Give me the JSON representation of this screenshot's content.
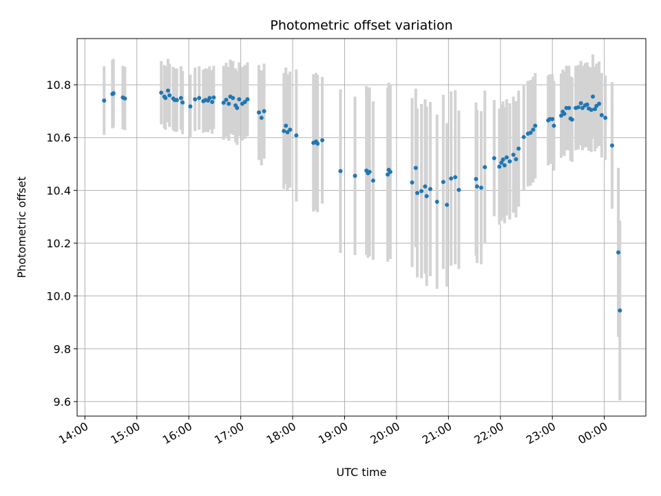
{
  "chart_data": {
    "type": "scatter",
    "title": "Photometric offset variation",
    "xlabel": "UTC time",
    "ylabel": "Photometric offset",
    "ylim": [
      9.545,
      10.975
    ],
    "xlim_hours": [
      13.85,
      24.8
    ],
    "x_ticks": [
      {
        "hour": 14,
        "label": "14:00"
      },
      {
        "hour": 15,
        "label": "15:00"
      },
      {
        "hour": 16,
        "label": "16:00"
      },
      {
        "hour": 17,
        "label": "17:00"
      },
      {
        "hour": 18,
        "label": "18:00"
      },
      {
        "hour": 19,
        "label": "19:00"
      },
      {
        "hour": 20,
        "label": "20:00"
      },
      {
        "hour": 21,
        "label": "21:00"
      },
      {
        "hour": 22,
        "label": "22:00"
      },
      {
        "hour": 23,
        "label": "23:00"
      },
      {
        "hour": 24,
        "label": "00:00"
      }
    ],
    "y_ticks": [
      {
        "value": 9.6,
        "label": "9.6"
      },
      {
        "value": 9.8,
        "label": "9.8"
      },
      {
        "value": 10.0,
        "label": "10.0"
      },
      {
        "value": 10.2,
        "label": "10.2"
      },
      {
        "value": 10.4,
        "label": "10.4"
      },
      {
        "value": 10.6,
        "label": "10.6"
      },
      {
        "value": 10.8,
        "label": "10.8"
      }
    ],
    "grid": true,
    "point_color": "#1f77b4",
    "errorbar_color": "#d3d3d3",
    "x_unit": "UTC hour (values >= 24 are after midnight)",
    "points": [
      {
        "x": 14.37,
        "y": 10.74,
        "err": 0.13
      },
      {
        "x": 14.53,
        "y": 10.765,
        "err": 0.13
      },
      {
        "x": 14.55,
        "y": 10.768,
        "err": 0.13
      },
      {
        "x": 14.73,
        "y": 10.752,
        "err": 0.12
      },
      {
        "x": 14.77,
        "y": 10.748,
        "err": 0.12
      },
      {
        "x": 15.47,
        "y": 10.77,
        "err": 0.12
      },
      {
        "x": 15.53,
        "y": 10.755,
        "err": 0.12
      },
      {
        "x": 15.55,
        "y": 10.75,
        "err": 0.12
      },
      {
        "x": 15.6,
        "y": 10.778,
        "err": 0.12
      },
      {
        "x": 15.63,
        "y": 10.76,
        "err": 0.12
      },
      {
        "x": 15.7,
        "y": 10.748,
        "err": 0.12
      },
      {
        "x": 15.73,
        "y": 10.742,
        "err": 0.12
      },
      {
        "x": 15.77,
        "y": 10.742,
        "err": 0.12
      },
      {
        "x": 15.85,
        "y": 10.75,
        "err": 0.12
      },
      {
        "x": 15.88,
        "y": 10.733,
        "err": 0.12
      },
      {
        "x": 16.03,
        "y": 10.718,
        "err": 0.12
      },
      {
        "x": 16.12,
        "y": 10.745,
        "err": 0.12
      },
      {
        "x": 16.2,
        "y": 10.75,
        "err": 0.12
      },
      {
        "x": 16.28,
        "y": 10.738,
        "err": 0.12
      },
      {
        "x": 16.32,
        "y": 10.742,
        "err": 0.12
      },
      {
        "x": 16.37,
        "y": 10.74,
        "err": 0.12
      },
      {
        "x": 16.4,
        "y": 10.75,
        "err": 0.12
      },
      {
        "x": 16.45,
        "y": 10.735,
        "err": 0.12
      },
      {
        "x": 16.48,
        "y": 10.752,
        "err": 0.12
      },
      {
        "x": 16.67,
        "y": 10.732,
        "err": 0.14
      },
      {
        "x": 16.72,
        "y": 10.743,
        "err": 0.14
      },
      {
        "x": 16.77,
        "y": 10.728,
        "err": 0.14
      },
      {
        "x": 16.8,
        "y": 10.755,
        "err": 0.14
      },
      {
        "x": 16.85,
        "y": 10.75,
        "err": 0.14
      },
      {
        "x": 16.9,
        "y": 10.722,
        "err": 0.14
      },
      {
        "x": 16.93,
        "y": 10.712,
        "err": 0.14
      },
      {
        "x": 16.97,
        "y": 10.745,
        "err": 0.14
      },
      {
        "x": 17.03,
        "y": 10.728,
        "err": 0.14
      },
      {
        "x": 17.08,
        "y": 10.735,
        "err": 0.14
      },
      {
        "x": 17.13,
        "y": 10.745,
        "err": 0.14
      },
      {
        "x": 17.35,
        "y": 10.695,
        "err": 0.18
      },
      {
        "x": 17.4,
        "y": 10.675,
        "err": 0.18
      },
      {
        "x": 17.45,
        "y": 10.7,
        "err": 0.18
      },
      {
        "x": 17.83,
        "y": 10.625,
        "err": 0.22
      },
      {
        "x": 17.87,
        "y": 10.645,
        "err": 0.22
      },
      {
        "x": 17.9,
        "y": 10.62,
        "err": 0.22
      },
      {
        "x": 17.95,
        "y": 10.63,
        "err": 0.22
      },
      {
        "x": 18.07,
        "y": 10.608,
        "err": 0.25
      },
      {
        "x": 18.4,
        "y": 10.58,
        "err": 0.26
      },
      {
        "x": 18.45,
        "y": 10.585,
        "err": 0.26
      },
      {
        "x": 18.48,
        "y": 10.577,
        "err": 0.26
      },
      {
        "x": 18.57,
        "y": 10.59,
        "err": 0.24
      },
      {
        "x": 18.92,
        "y": 10.473,
        "err": 0.31
      },
      {
        "x": 19.2,
        "y": 10.455,
        "err": 0.3
      },
      {
        "x": 19.42,
        "y": 10.475,
        "err": 0.32
      },
      {
        "x": 19.45,
        "y": 10.465,
        "err": 0.32
      },
      {
        "x": 19.48,
        "y": 10.47,
        "err": 0.32
      },
      {
        "x": 19.55,
        "y": 10.437,
        "err": 0.3
      },
      {
        "x": 19.83,
        "y": 10.46,
        "err": 0.33
      },
      {
        "x": 19.85,
        "y": 10.478,
        "err": 0.33
      },
      {
        "x": 19.88,
        "y": 10.47,
        "err": 0.33
      },
      {
        "x": 20.3,
        "y": 10.43,
        "err": 0.32
      },
      {
        "x": 20.37,
        "y": 10.485,
        "err": 0.3
      },
      {
        "x": 20.4,
        "y": 10.39,
        "err": 0.32
      },
      {
        "x": 20.48,
        "y": 10.397,
        "err": 0.33
      },
      {
        "x": 20.55,
        "y": 10.415,
        "err": 0.33
      },
      {
        "x": 20.58,
        "y": 10.378,
        "err": 0.34
      },
      {
        "x": 20.65,
        "y": 10.405,
        "err": 0.33
      },
      {
        "x": 20.78,
        "y": 10.357,
        "err": 0.33
      },
      {
        "x": 20.9,
        "y": 10.432,
        "err": 0.33
      },
      {
        "x": 20.97,
        "y": 10.345,
        "err": 0.31
      },
      {
        "x": 21.05,
        "y": 10.445,
        "err": 0.33
      },
      {
        "x": 21.13,
        "y": 10.45,
        "err": 0.33
      },
      {
        "x": 21.2,
        "y": 10.402,
        "err": 0.3
      },
      {
        "x": 21.53,
        "y": 10.443,
        "err": 0.29
      },
      {
        "x": 21.55,
        "y": 10.415,
        "err": 0.29
      },
      {
        "x": 21.63,
        "y": 10.41,
        "err": 0.29
      },
      {
        "x": 21.7,
        "y": 10.488,
        "err": 0.29
      },
      {
        "x": 21.88,
        "y": 10.522,
        "err": 0.22
      },
      {
        "x": 21.98,
        "y": 10.49,
        "err": 0.22
      },
      {
        "x": 22.02,
        "y": 10.505,
        "err": 0.22
      },
      {
        "x": 22.05,
        "y": 10.517,
        "err": 0.22
      },
      {
        "x": 22.08,
        "y": 10.495,
        "err": 0.22
      },
      {
        "x": 22.12,
        "y": 10.525,
        "err": 0.22
      },
      {
        "x": 22.18,
        "y": 10.51,
        "err": 0.22
      },
      {
        "x": 22.25,
        "y": 10.535,
        "err": 0.22
      },
      {
        "x": 22.3,
        "y": 10.518,
        "err": 0.22
      },
      {
        "x": 22.35,
        "y": 10.558,
        "err": 0.22
      },
      {
        "x": 22.45,
        "y": 10.602,
        "err": 0.2
      },
      {
        "x": 22.53,
        "y": 10.615,
        "err": 0.2
      },
      {
        "x": 22.58,
        "y": 10.618,
        "err": 0.2
      },
      {
        "x": 22.63,
        "y": 10.63,
        "err": 0.2
      },
      {
        "x": 22.67,
        "y": 10.645,
        "err": 0.2
      },
      {
        "x": 22.92,
        "y": 10.665,
        "err": 0.17
      },
      {
        "x": 22.95,
        "y": 10.67,
        "err": 0.17
      },
      {
        "x": 23.0,
        "y": 10.67,
        "err": 0.17
      },
      {
        "x": 23.03,
        "y": 10.645,
        "err": 0.17
      },
      {
        "x": 23.17,
        "y": 10.683,
        "err": 0.16
      },
      {
        "x": 23.2,
        "y": 10.698,
        "err": 0.16
      },
      {
        "x": 23.23,
        "y": 10.69,
        "err": 0.16
      },
      {
        "x": 23.27,
        "y": 10.712,
        "err": 0.16
      },
      {
        "x": 23.32,
        "y": 10.712,
        "err": 0.16
      },
      {
        "x": 23.35,
        "y": 10.672,
        "err": 0.16
      },
      {
        "x": 23.38,
        "y": 10.668,
        "err": 0.16
      },
      {
        "x": 23.45,
        "y": 10.712,
        "err": 0.16
      },
      {
        "x": 23.5,
        "y": 10.715,
        "err": 0.16
      },
      {
        "x": 23.55,
        "y": 10.73,
        "err": 0.16
      },
      {
        "x": 23.58,
        "y": 10.712,
        "err": 0.16
      },
      {
        "x": 23.63,
        "y": 10.722,
        "err": 0.16
      },
      {
        "x": 23.67,
        "y": 10.725,
        "err": 0.16
      },
      {
        "x": 23.7,
        "y": 10.71,
        "err": 0.16
      },
      {
        "x": 23.75,
        "y": 10.705,
        "err": 0.16
      },
      {
        "x": 23.78,
        "y": 10.755,
        "err": 0.16
      },
      {
        "x": 23.82,
        "y": 10.708,
        "err": 0.16
      },
      {
        "x": 23.85,
        "y": 10.72,
        "err": 0.16
      },
      {
        "x": 23.9,
        "y": 10.728,
        "err": 0.16
      },
      {
        "x": 23.95,
        "y": 10.685,
        "err": 0.16
      },
      {
        "x": 24.02,
        "y": 10.675,
        "err": 0.16
      },
      {
        "x": 24.15,
        "y": 10.57,
        "err": 0.24
      },
      {
        "x": 24.27,
        "y": 10.165,
        "err": 0.32
      },
      {
        "x": 24.3,
        "y": 9.945,
        "err": 0.34
      }
    ]
  }
}
